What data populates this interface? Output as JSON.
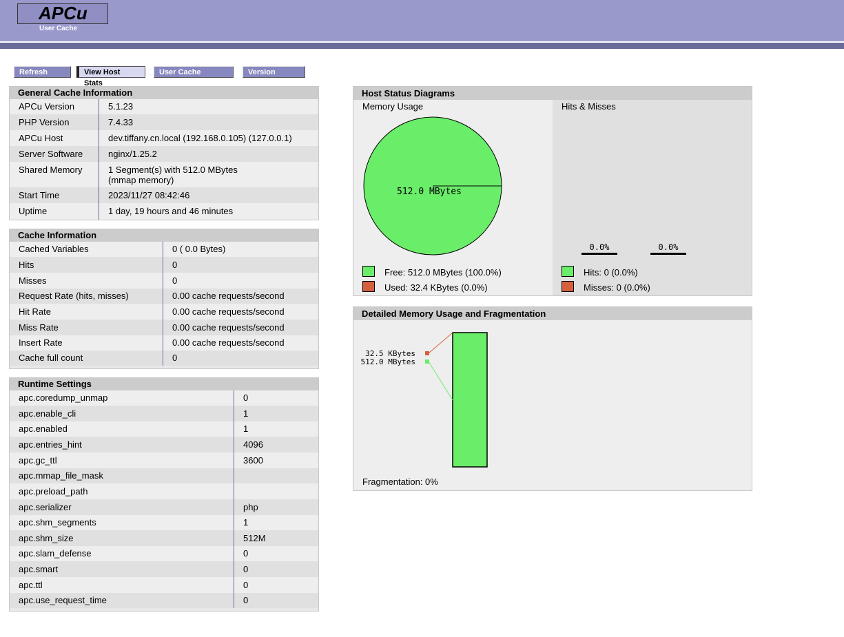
{
  "app": {
    "title": "APCu",
    "subtitle": "User Cache"
  },
  "nav": {
    "refresh": "Refresh Data",
    "host_stats": "View Host Stats",
    "user_entries": "User Cache Entries",
    "version_check": "Version Check"
  },
  "colors": {
    "free": "#6aed69",
    "used": "#d65f3e",
    "header": "#9999cc"
  },
  "general": {
    "title": "General Cache Information",
    "rows": [
      {
        "label": "APCu Version",
        "value": "5.1.23"
      },
      {
        "label": "PHP Version",
        "value": "7.4.33"
      },
      {
        "label": "APCu Host",
        "value": "dev.tiffany.cn.local (192.168.0.105) (127.0.0.1)"
      },
      {
        "label": "Server Software",
        "value": "nginx/1.25.2"
      },
      {
        "label": "Shared Memory",
        "value": "1 Segment(s) with 512.0 MBytes",
        "value2": "(mmap memory)"
      },
      {
        "label": "Start Time",
        "value": "2023/11/27 08:42:46"
      },
      {
        "label": "Uptime",
        "value": "1 day, 19 hours and 46 minutes"
      }
    ]
  },
  "cache": {
    "title": "Cache Information",
    "rows": [
      {
        "label": "Cached Variables",
        "value": "0 ( 0.0 Bytes)"
      },
      {
        "label": "Hits",
        "value": "0"
      },
      {
        "label": "Misses",
        "value": "0"
      },
      {
        "label": "Request Rate (hits, misses)",
        "value": "0.00 cache requests/second"
      },
      {
        "label": "Hit Rate",
        "value": "0.00 cache requests/second"
      },
      {
        "label": "Miss Rate",
        "value": "0.00 cache requests/second"
      },
      {
        "label": "Insert Rate",
        "value": "0.00 cache requests/second"
      },
      {
        "label": "Cache full count",
        "value": "0"
      }
    ]
  },
  "runtime": {
    "title": "Runtime Settings",
    "rows": [
      {
        "label": "apc.coredump_unmap",
        "value": "0"
      },
      {
        "label": "apc.enable_cli",
        "value": "1"
      },
      {
        "label": "apc.enabled",
        "value": "1"
      },
      {
        "label": "apc.entries_hint",
        "value": "4096"
      },
      {
        "label": "apc.gc_ttl",
        "value": "3600"
      },
      {
        "label": "apc.mmap_file_mask",
        "value": ""
      },
      {
        "label": "apc.preload_path",
        "value": ""
      },
      {
        "label": "apc.serializer",
        "value": "php"
      },
      {
        "label": "apc.shm_segments",
        "value": "1"
      },
      {
        "label": "apc.shm_size",
        "value": "512M"
      },
      {
        "label": "apc.slam_defense",
        "value": "0"
      },
      {
        "label": "apc.smart",
        "value": "0"
      },
      {
        "label": "apc.ttl",
        "value": "0"
      },
      {
        "label": "apc.use_request_time",
        "value": "0"
      }
    ]
  },
  "host_status": {
    "title": "Host Status Diagrams",
    "memory_title": "Memory Usage",
    "pie_label": "512.0 MBytes",
    "free_legend": "Free: 512.0 MBytes (100.0%)",
    "used_legend": "Used: 32.4 KBytes (0.0%)",
    "hits_title": "Hits & Misses",
    "hits_bar_label": "0.0%",
    "misses_bar_label": "0.0%",
    "hits_legend": "Hits: 0 (0.0%)",
    "misses_legend": "Misses: 0 (0.0%)"
  },
  "fragmentation": {
    "title": "Detailed Memory Usage and Fragmentation",
    "used_label": "32.5 KBytes",
    "free_label": "512.0 MBytes",
    "footer": "Fragmentation: 0%"
  }
}
